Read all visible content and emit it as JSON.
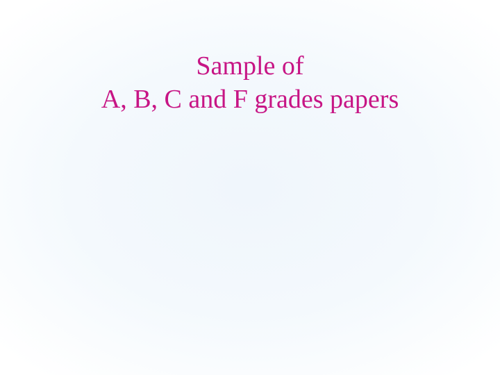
{
  "slide": {
    "title_line1": "Sample of",
    "title_line2": "A, B, C and F grades papers",
    "title_color": "#c71585",
    "title_fontsize": 38,
    "title_font_family": "Comic Sans MS",
    "background_gradient_inner": "#f0f6fc",
    "background_gradient_outer": "#ffffff"
  }
}
